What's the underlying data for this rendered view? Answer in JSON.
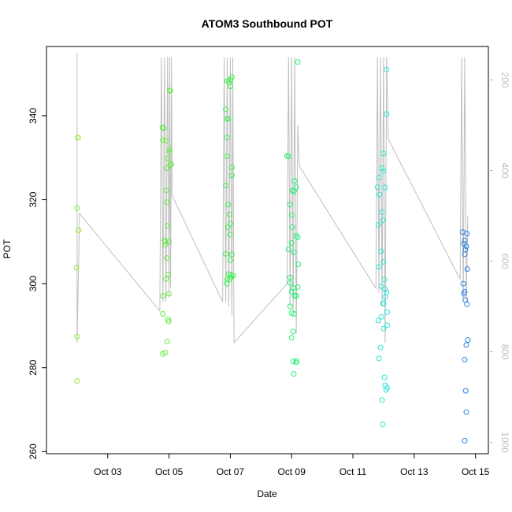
{
  "chart_data": {
    "type": "scatter",
    "title": "ATOM3 Southbound POT",
    "xlabel": "Date",
    "ylabel": "POT",
    "x_tick_labels": [
      "Oct 03",
      "Oct 05",
      "Oct 07",
      "Oct 09",
      "Oct 11",
      "Oct 13",
      "Oct 15"
    ],
    "x_tick_days": [
      3,
      5,
      7,
      9,
      11,
      13,
      15
    ],
    "xlim_days": [
      1.0,
      15.42
    ],
    "y_ticks": [
      260,
      280,
      300,
      320,
      340
    ],
    "ylim": [
      259.5,
      356.5
    ],
    "right_axis": {
      "label": "",
      "ticks": [
        200,
        400,
        600,
        800,
        1000
      ],
      "lim": [
        1025,
        126
      ],
      "reversed": true
    },
    "grid": false,
    "legend": "none",
    "colors": {
      "axis": "#000000",
      "depth_trace": "#bebebe",
      "right_axis_ticks": "#bebebe",
      "point_gradient_early": "#8fe828",
      "point_gradient_late": "#2b80e0"
    },
    "points": [
      [
        2.02,
        334.8
      ],
      [
        2.03,
        334.8
      ],
      [
        2.0,
        318.0
      ],
      [
        2.05,
        312.7
      ],
      [
        1.98,
        303.8
      ],
      [
        2.0,
        287.4
      ],
      [
        2.0,
        276.8
      ],
      [
        4.78,
        337.2
      ],
      [
        4.83,
        337.0
      ],
      [
        4.8,
        334.2
      ],
      [
        4.9,
        334.0
      ],
      [
        5.0,
        332.0
      ],
      [
        5.02,
        331.5
      ],
      [
        4.95,
        329.8
      ],
      [
        4.92,
        327.5
      ],
      [
        5.08,
        328.5
      ],
      [
        5.04,
        328.2
      ],
      [
        5.02,
        346.0
      ],
      [
        5.04,
        346.0
      ],
      [
        4.9,
        322.2
      ],
      [
        4.93,
        319.4
      ],
      [
        4.95,
        313.8
      ],
      [
        4.85,
        310.3
      ],
      [
        4.87,
        310.0
      ],
      [
        5.0,
        310.0
      ],
      [
        4.88,
        309.3
      ],
      [
        4.93,
        306.1
      ],
      [
        4.97,
        302.2
      ],
      [
        4.9,
        301.1
      ],
      [
        5.0,
        297.6
      ],
      [
        4.8,
        297.1
      ],
      [
        4.8,
        292.8
      ],
      [
        4.97,
        291.5
      ],
      [
        4.99,
        291.0
      ],
      [
        4.94,
        286.2
      ],
      [
        4.88,
        283.6
      ],
      [
        4.8,
        283.3
      ],
      [
        6.9,
        348.3
      ],
      [
        6.95,
        348.0
      ],
      [
        7.05,
        349.2
      ],
      [
        7.0,
        348.6
      ],
      [
        7.0,
        347.0
      ],
      [
        6.85,
        341.5
      ],
      [
        6.88,
        339.2
      ],
      [
        6.93,
        339.3
      ],
      [
        6.9,
        334.8
      ],
      [
        6.9,
        330.3
      ],
      [
        7.05,
        327.7
      ],
      [
        7.05,
        325.8
      ],
      [
        6.85,
        323.4
      ],
      [
        6.93,
        318.8
      ],
      [
        6.97,
        316.5
      ],
      [
        6.92,
        313.4
      ],
      [
        7.0,
        314.3
      ],
      [
        6.99,
        311.7
      ],
      [
        7.05,
        307.0
      ],
      [
        6.85,
        307.1
      ],
      [
        7.0,
        305.6
      ],
      [
        6.95,
        302.3
      ],
      [
        7.1,
        301.9
      ],
      [
        7.02,
        301.5
      ],
      [
        6.97,
        301.0
      ],
      [
        6.88,
        300.0
      ],
      [
        6.9,
        301.0
      ],
      [
        7.03,
        302.0
      ],
      [
        8.85,
        330.5
      ],
      [
        8.9,
        330.3
      ],
      [
        9.2,
        352.8
      ],
      [
        9.1,
        324.5
      ],
      [
        9.15,
        323.0
      ],
      [
        9.02,
        322.2
      ],
      [
        9.08,
        322.0
      ],
      [
        8.95,
        318.8
      ],
      [
        9.0,
        316.3
      ],
      [
        9.02,
        313.5
      ],
      [
        9.15,
        311.4
      ],
      [
        9.2,
        311.0
      ],
      [
        9.0,
        309.7
      ],
      [
        8.9,
        308.2
      ],
      [
        9.07,
        307.5
      ],
      [
        9.22,
        304.6
      ],
      [
        8.95,
        301.5
      ],
      [
        8.95,
        300.2
      ],
      [
        9.05,
        299.0
      ],
      [
        9.0,
        298.1
      ],
      [
        9.15,
        297.1
      ],
      [
        9.2,
        299.2
      ],
      [
        9.1,
        297.1
      ],
      [
        8.95,
        294.6
      ],
      [
        9.0,
        293.0
      ],
      [
        9.08,
        292.8
      ],
      [
        9.05,
        288.6
      ],
      [
        9.0,
        287.1
      ],
      [
        9.05,
        281.5
      ],
      [
        9.15,
        281.6
      ],
      [
        9.15,
        281.2
      ],
      [
        9.07,
        278.5
      ],
      [
        12.1,
        351.0
      ],
      [
        12.1,
        340.4
      ],
      [
        12.0,
        331.0
      ],
      [
        11.95,
        327.5
      ],
      [
        12.0,
        326.8
      ],
      [
        11.85,
        325.3
      ],
      [
        11.8,
        323.0
      ],
      [
        12.05,
        322.9
      ],
      [
        11.87,
        321.2
      ],
      [
        11.95,
        317.0
      ],
      [
        11.98,
        315.1
      ],
      [
        11.83,
        314.0
      ],
      [
        11.92,
        307.7
      ],
      [
        12.0,
        305.2
      ],
      [
        11.85,
        304.0
      ],
      [
        12.03,
        301.0
      ],
      [
        11.93,
        299.4
      ],
      [
        12.05,
        298.7
      ],
      [
        12.1,
        297.9
      ],
      [
        12.05,
        296.8
      ],
      [
        11.98,
        295.3
      ],
      [
        12.0,
        295.3
      ],
      [
        12.12,
        293.2
      ],
      [
        11.93,
        292.1
      ],
      [
        12.0,
        289.3
      ],
      [
        11.83,
        291.2
      ],
      [
        12.12,
        290.1
      ],
      [
        11.9,
        284.8
      ],
      [
        11.85,
        282.2
      ],
      [
        12.03,
        277.7
      ],
      [
        12.05,
        275.8
      ],
      [
        12.12,
        275.2
      ],
      [
        12.08,
        274.7
      ],
      [
        11.95,
        272.3
      ],
      [
        11.97,
        266.5
      ],
      [
        14.58,
        312.3
      ],
      [
        14.72,
        311.9
      ],
      [
        14.65,
        310.3
      ],
      [
        14.62,
        309.5
      ],
      [
        14.7,
        308.9
      ],
      [
        14.67,
        308.1
      ],
      [
        14.65,
        307.0
      ],
      [
        14.73,
        303.5
      ],
      [
        14.6,
        300.0
      ],
      [
        14.65,
        298.1
      ],
      [
        14.62,
        297.6
      ],
      [
        14.67,
        296.1
      ],
      [
        14.72,
        295.1
      ],
      [
        14.75,
        286.6
      ],
      [
        14.7,
        285.4
      ],
      [
        14.65,
        281.9
      ],
      [
        14.68,
        274.5
      ],
      [
        14.7,
        269.4
      ],
      [
        14.65,
        262.6
      ]
    ],
    "depth_trace_note_free": true,
    "depth_trace": [
      [
        2.0,
        140
      ],
      [
        2.0,
        780
      ],
      [
        2.08,
        495
      ],
      [
        4.7,
        710
      ],
      [
        4.75,
        150
      ],
      [
        4.8,
        690
      ],
      [
        4.85,
        150
      ],
      [
        4.9,
        690
      ],
      [
        4.95,
        150
      ],
      [
        5.0,
        680
      ],
      [
        5.02,
        150
      ],
      [
        5.05,
        660
      ],
      [
        5.08,
        150
      ],
      [
        5.1,
        455
      ],
      [
        6.75,
        690
      ],
      [
        6.8,
        150
      ],
      [
        6.85,
        690
      ],
      [
        6.9,
        150
      ],
      [
        6.95,
        700
      ],
      [
        7.0,
        150
      ],
      [
        7.05,
        720
      ],
      [
        7.08,
        150
      ],
      [
        7.12,
        780
      ],
      [
        8.85,
        650
      ],
      [
        8.9,
        150
      ],
      [
        8.95,
        700
      ],
      [
        9.0,
        150
      ],
      [
        9.05,
        710
      ],
      [
        9.1,
        150
      ],
      [
        9.15,
        760
      ],
      [
        9.2,
        300
      ],
      [
        9.25,
        390
      ],
      [
        11.75,
        660
      ],
      [
        11.8,
        150
      ],
      [
        11.85,
        670
      ],
      [
        11.9,
        150
      ],
      [
        11.95,
        700
      ],
      [
        12.0,
        150
      ],
      [
        12.05,
        780
      ],
      [
        12.1,
        150
      ],
      [
        12.15,
        330
      ],
      [
        14.5,
        640
      ],
      [
        14.55,
        150
      ],
      [
        14.6,
        690
      ],
      [
        14.65,
        150
      ],
      [
        14.7,
        690
      ],
      [
        14.75,
        500
      ]
    ]
  }
}
